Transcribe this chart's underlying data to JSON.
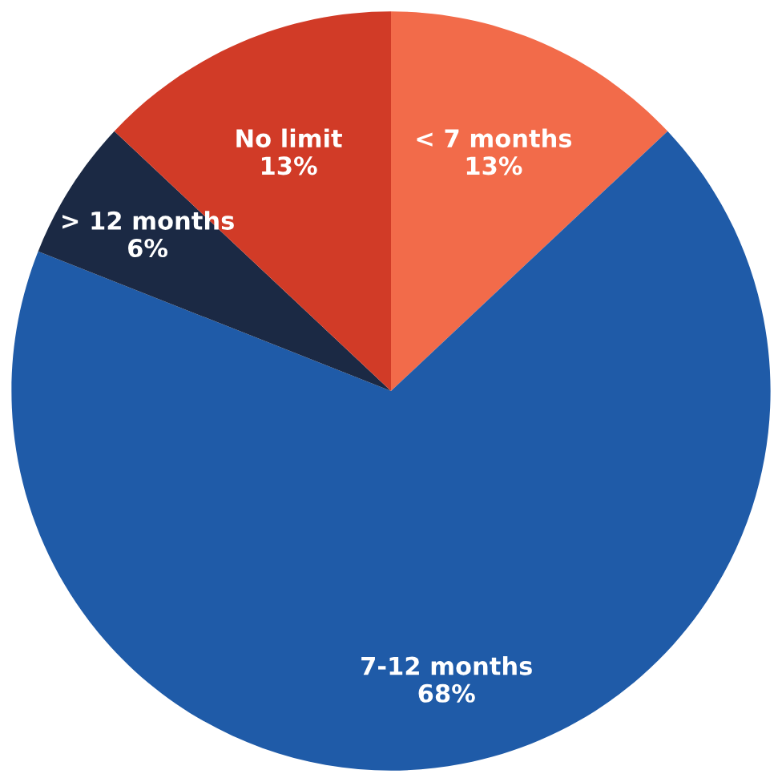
{
  "chart_data": {
    "type": "pie",
    "categories": [
      "< 7 months",
      "7-12 months",
      "> 12 months",
      "No limit"
    ],
    "values": [
      13,
      68,
      6,
      13
    ],
    "value_labels": [
      "13%",
      "68%",
      "6%",
      "13%"
    ],
    "colors": [
      "#f26b4a",
      "#1f5ba8",
      "#1b2944",
      "#d13b27"
    ],
    "legend": false
  }
}
